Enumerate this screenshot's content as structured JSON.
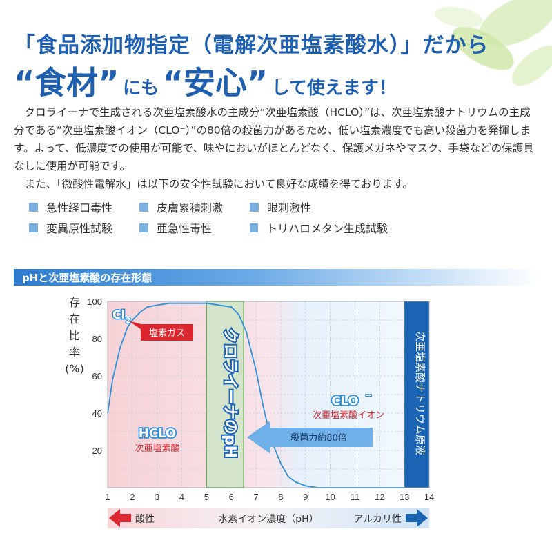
{
  "header": {
    "line1": "「食品添加物指定（電解次亜塩素酸水）」だから",
    "line2_parts": [
      "“食材”",
      "にも",
      "“安心”",
      "して使えます！"
    ]
  },
  "body": {
    "paragraph1": "クロライーナで生成される次亜塩素酸水の主成分“次亜塩素酸（HCLO）”は、次亜塩素酸ナトリウムの主成分である“次亜塩素酸イオン（CLO⁻）”の80倍の殺菌力があるため、低い塩素濃度でも高い殺菌力を発揮します。よって、低濃度での使用が可能で、味やにおいがほとんどなく、保護メガネやマスク、手袋などの保護具なしに使用が可能です。",
    "paragraph2": "また、「微酸性電解水」は以下の安全性試験において良好な成績を得ております。"
  },
  "tests": [
    "急性経口毒性",
    "皮膚累積刺激",
    "眼刺激性",
    "変異原性試験",
    "亜急性毒性",
    "トリハロメタン生成試験"
  ],
  "section_title": "pHと次亜塩素酸の存在形態",
  "chart_data": {
    "type": "line",
    "title": "pHと次亜塩素酸の存在形態",
    "ylabel": "存在比率(%)",
    "ylabel_lines": [
      "存",
      "在",
      "比",
      "率",
      "(%)"
    ],
    "xlabel": "水素イオン濃度（pH）",
    "xlim": [
      1,
      14
    ],
    "ylim": [
      0,
      100
    ],
    "xticks": [
      "1",
      "2",
      "3",
      "4",
      "5",
      "6",
      "7",
      "8",
      "9",
      "10",
      "11",
      "12",
      "13",
      "14"
    ],
    "yticks": [
      "20",
      "40",
      "60",
      "80",
      "100"
    ],
    "yticks_values": [
      20,
      40,
      60,
      80,
      100
    ],
    "grid": true,
    "series": [
      {
        "x": [
          1,
          1.2,
          1.5,
          1.8,
          2,
          2.3,
          2.6,
          3,
          3.5,
          4,
          5,
          6,
          6.3,
          6.6,
          7,
          7.3,
          7.6,
          8,
          8.3,
          8.6,
          9,
          9.5,
          10,
          11,
          12,
          13
        ],
        "y": [
          40,
          58,
          75,
          86,
          90,
          94,
          97,
          98,
          99,
          99,
          99,
          97,
          93,
          84,
          63,
          43,
          26,
          13,
          6,
          3,
          1,
          0,
          0,
          0,
          0,
          0
        ]
      }
    ],
    "regions": {
      "hclo_label": "HCLO",
      "hclo_sub": "次亜塩素酸",
      "clo_label": "CLO",
      "clo_sup": "−",
      "clo_sub": "次亜塩素酸イオン",
      "cl2_label": "Cl",
      "cl2_sub": "2",
      "gas_label": "塩素ガス",
      "chlorina_label": "クロライーナのpH",
      "chlorina_range": [
        5,
        6.5
      ],
      "sodium_label": "次亜塩素酸ナトリウム原液",
      "sodium_range": [
        13,
        14
      ],
      "arrow_label": "殺菌力約80倍",
      "acid_label": "酸性",
      "alkali_label": "アルカリ性"
    },
    "colors": {
      "curve": "#2e90d8",
      "acid_bg": "#f6d2d6",
      "alkali_bg": "#e6f1fb",
      "chlorina_band": "#cfe6c8",
      "sodium_band": "#1b64b3",
      "red_label": "#d9262f",
      "blue_label": "#2e90d8"
    }
  }
}
